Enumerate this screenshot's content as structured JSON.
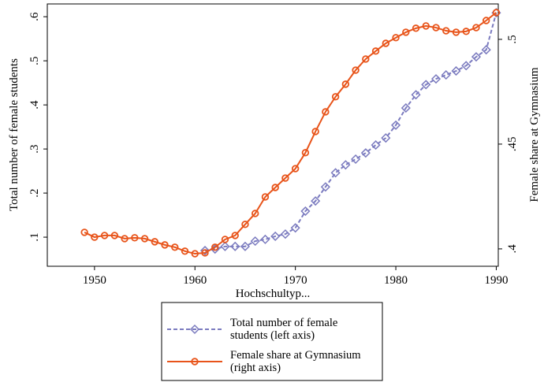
{
  "chart_data": {
    "type": "line",
    "x_label": "Hochschultyp...",
    "y_label": "Total number of female students",
    "y2_label": "Female share at Gymnasium",
    "xlim": [
      1945.3,
      1990.2
    ],
    "xticks": [
      1950,
      1960,
      1970,
      1980,
      1990
    ],
    "ylim": [
      0.034,
      0.629
    ],
    "yticks": [
      {
        "value": 0.1,
        "label": ".1"
      },
      {
        "value": 0.2,
        "label": ".2"
      },
      {
        "value": 0.3,
        "label": ".3"
      },
      {
        "value": 0.4,
        "label": ".4"
      },
      {
        "value": 0.5,
        "label": ".5"
      },
      {
        "value": 0.6,
        "label": ".6"
      }
    ],
    "y2lim": [
      0.3917,
      0.5169
    ],
    "y2ticks": [
      {
        "value": 0.4,
        "label": ".4"
      },
      {
        "value": 0.45,
        "label": ".45"
      },
      {
        "value": 0.5,
        "label": ".5"
      }
    ],
    "x": [
      1949,
      1950,
      1951,
      1952,
      1953,
      1954,
      1955,
      1956,
      1957,
      1958,
      1959,
      1960,
      1961,
      1962,
      1963,
      1964,
      1965,
      1966,
      1967,
      1968,
      1969,
      1970,
      1971,
      1972,
      1973,
      1974,
      1975,
      1976,
      1977,
      1978,
      1979,
      1980,
      1981,
      1982,
      1983,
      1984,
      1985,
      1986,
      1987,
      1988,
      1989,
      1990
    ],
    "series": [
      {
        "name": "Total number of female students (left axis)",
        "color": "#7b7bbf",
        "marker": "diamond",
        "dashed": true,
        "values": [
          null,
          null,
          null,
          null,
          null,
          null,
          null,
          null,
          null,
          null,
          null,
          null,
          0.0696,
          0.073,
          0.079,
          0.079,
          0.079,
          0.091,
          0.095,
          0.102,
          0.107,
          0.121,
          0.159,
          0.182,
          0.214,
          0.246,
          0.264,
          0.277,
          0.291,
          0.309,
          0.325,
          0.354,
          0.393,
          0.423,
          0.446,
          0.459,
          0.468,
          0.477,
          0.489,
          0.509,
          0.525,
          0.609
        ]
      },
      {
        "name": "Female share at Gymnasium (right axis)",
        "color": "#e8541a",
        "marker": "circle",
        "dashed": false,
        "axis": "y2",
        "values": [
          0.4079,
          0.4056,
          0.4064,
          0.4064,
          0.4049,
          0.4053,
          0.4049,
          0.4034,
          0.4019,
          0.4008,
          0.3989,
          0.3977,
          0.3981,
          0.4008,
          0.4045,
          0.4064,
          0.4117,
          0.4169,
          0.4248,
          0.4293,
          0.4338,
          0.4383,
          0.4459,
          0.456,
          0.4654,
          0.4726,
          0.4786,
          0.4853,
          0.4906,
          0.4944,
          0.4981,
          0.5008,
          0.5034,
          0.5053,
          0.5064,
          0.5056,
          0.5041,
          0.5034,
          0.5038,
          0.5056,
          0.509,
          0.5128
        ]
      }
    ]
  }
}
